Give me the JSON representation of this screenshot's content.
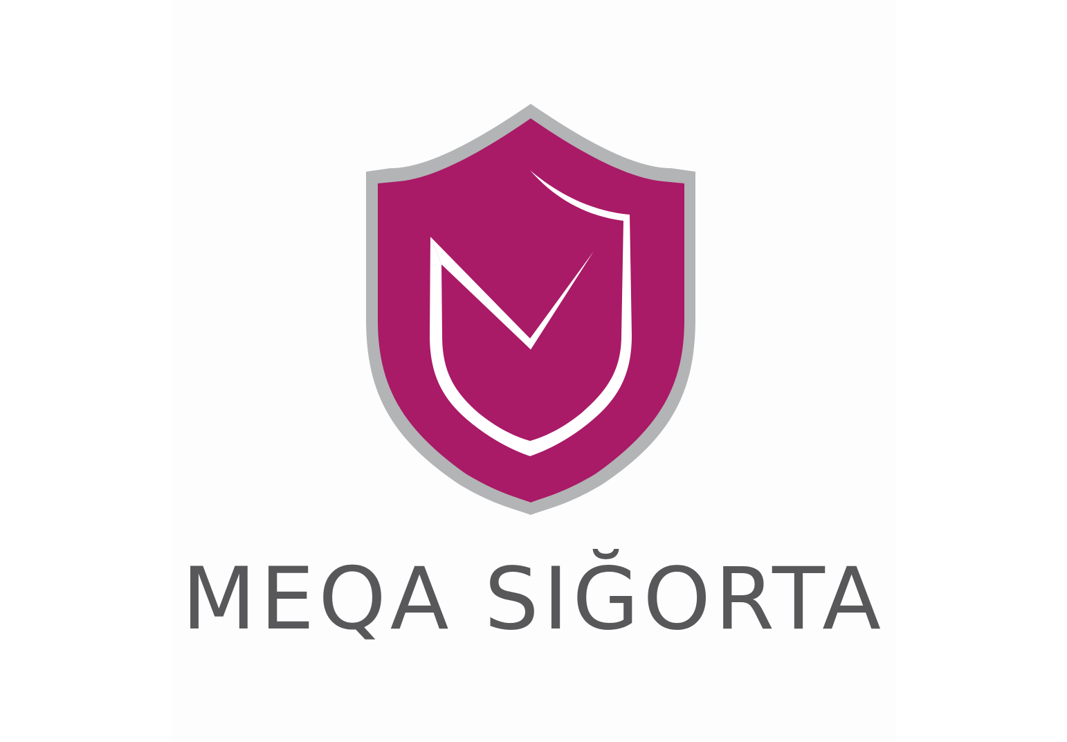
{
  "brand": {
    "name": "MEQA SIĞORTA",
    "icon": "shield-check-icon",
    "colors": {
      "shield_fill": "#a91a67",
      "shield_border": "#b3b4b5",
      "check_mark": "#ffffff",
      "text": "#58585a",
      "background": "#ffffff"
    }
  }
}
